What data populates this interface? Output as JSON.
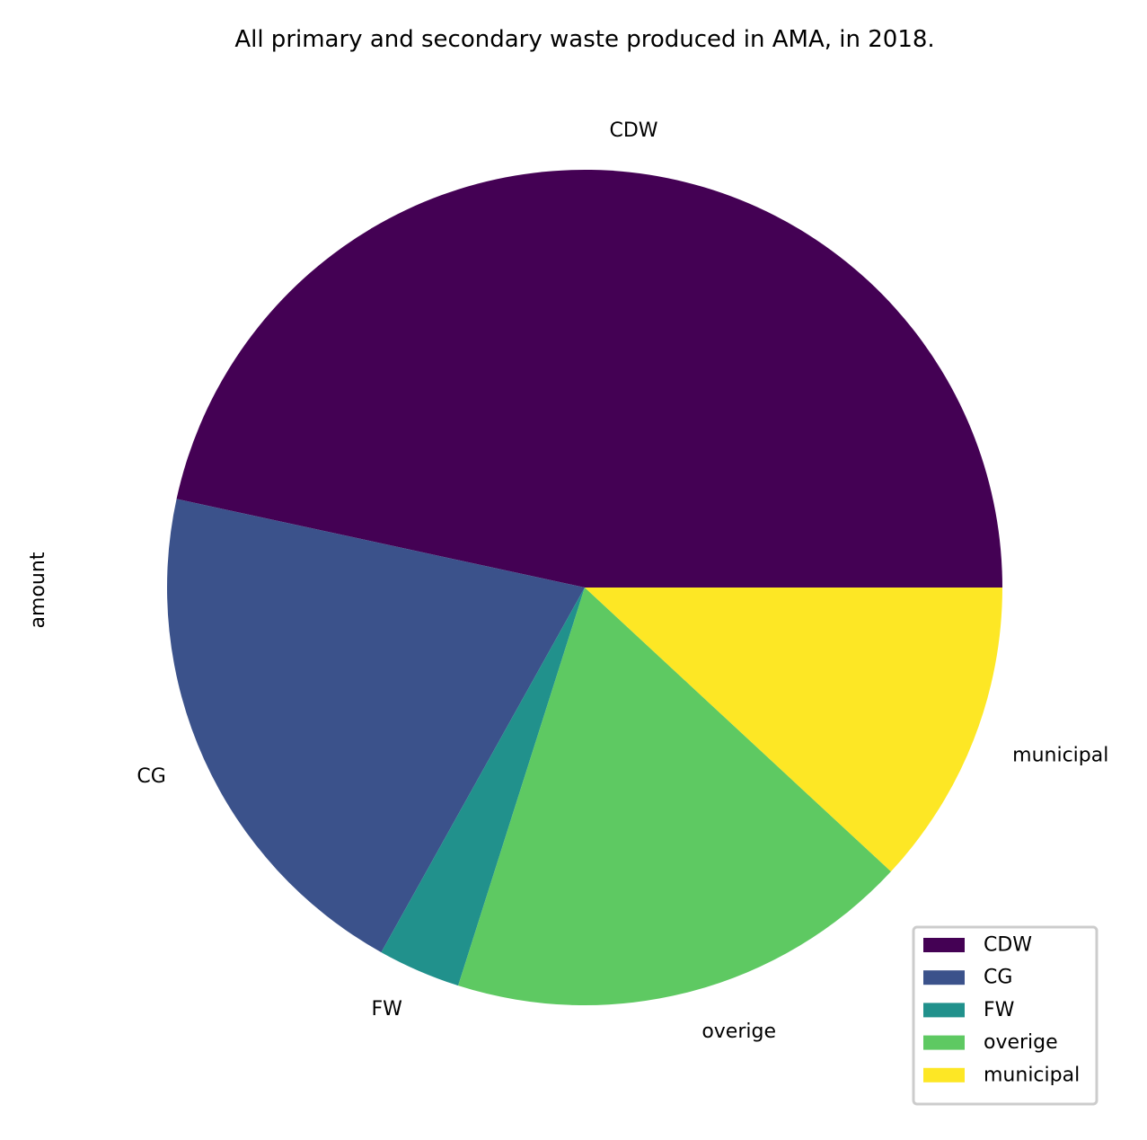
{
  "chart_data": {
    "type": "pie",
    "title": "All primary and secondary waste produced in AMA, in 2018.",
    "ylabel": "amount",
    "start_angle_deg": 0,
    "direction": "counterclockwise",
    "categories": [
      "CDW",
      "CG",
      "FW",
      "overige",
      "municipal"
    ],
    "values": [
      46.6,
      20.3,
      3.2,
      18.0,
      11.9
    ],
    "colors": [
      "#440154",
      "#3b528b",
      "#21918c",
      "#5ec962",
      "#fde725"
    ],
    "legend": {
      "placement": "lower-right",
      "entries": [
        "CDW",
        "CG",
        "FW",
        "overige",
        "municipal"
      ]
    }
  }
}
